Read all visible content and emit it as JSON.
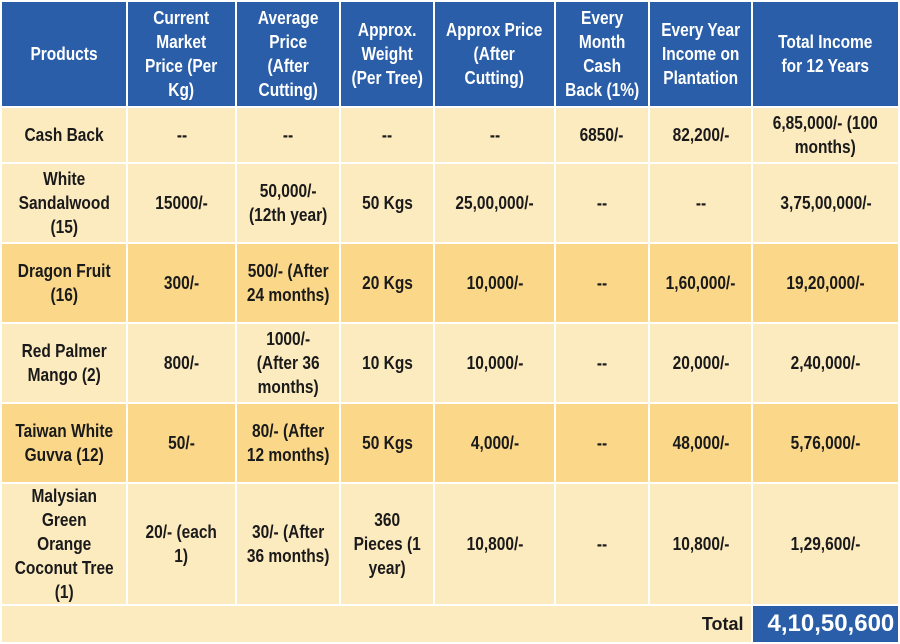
{
  "headers": [
    "Products",
    "Current Market Price (Per Kg)",
    "Average Price (After Cutting)",
    "Approx. Weight (Per Tree)",
    "Approx Price (After Cutting)",
    "Every Month Cash Back (1%)",
    "Every Year Income on Plantation",
    "Total Income for 12 Years"
  ],
  "rows": [
    {
      "product": "Cash Back",
      "market_price": "--",
      "avg_price": "--",
      "weight": "--",
      "approx_price": "--",
      "monthly_cashback": "6850/-",
      "yearly_income": "82,200/-",
      "total_income": "6,85,000/- (100 months)"
    },
    {
      "product": "White Sandalwood (15)",
      "market_price": "15000/-",
      "avg_price": "50,000/- (12th year)",
      "weight": "50 Kgs",
      "approx_price": "25,00,000/-",
      "monthly_cashback": "--",
      "yearly_income": "--",
      "total_income": "3,75,00,000/-"
    },
    {
      "product": "Dragon Fruit (16)",
      "market_price": "300/-",
      "avg_price": "500/- (After 24 months)",
      "weight": "20 Kgs",
      "approx_price": "10,000/-",
      "monthly_cashback": "--",
      "yearly_income": "1,60,000/-",
      "total_income": "19,20,000/-"
    },
    {
      "product": "Red Palmer Mango (2)",
      "market_price": "800/-",
      "avg_price": "1000/- (After 36 months)",
      "weight": "10 Kgs",
      "approx_price": "10,000/-",
      "monthly_cashback": "--",
      "yearly_income": "20,000/-",
      "total_income": "2,40,000/-"
    },
    {
      "product": "Taiwan White Guvva (12)",
      "market_price": "50/-",
      "avg_price": "80/- (After 12 months)",
      "weight": "50 Kgs",
      "approx_price": "4,000/-",
      "monthly_cashback": "--",
      "yearly_income": "48,000/-",
      "total_income": "5,76,000/-"
    },
    {
      "product": "Malysian Green Orange Coconut Tree (1)",
      "market_price": "20/- (each 1)",
      "avg_price": "30/- (After 36 months)",
      "weight": "360 Pieces (1 year)",
      "approx_price": "10,800/-",
      "monthly_cashback": "--",
      "yearly_income": "10,800/-",
      "total_income": "1,29,600/-"
    }
  ],
  "total": {
    "label": "Total",
    "value": "4,10,50,600"
  },
  "colors": {
    "header_bg": "#2b5ea8",
    "row_light": "#fdebc0",
    "row_dark": "#fbd889"
  }
}
